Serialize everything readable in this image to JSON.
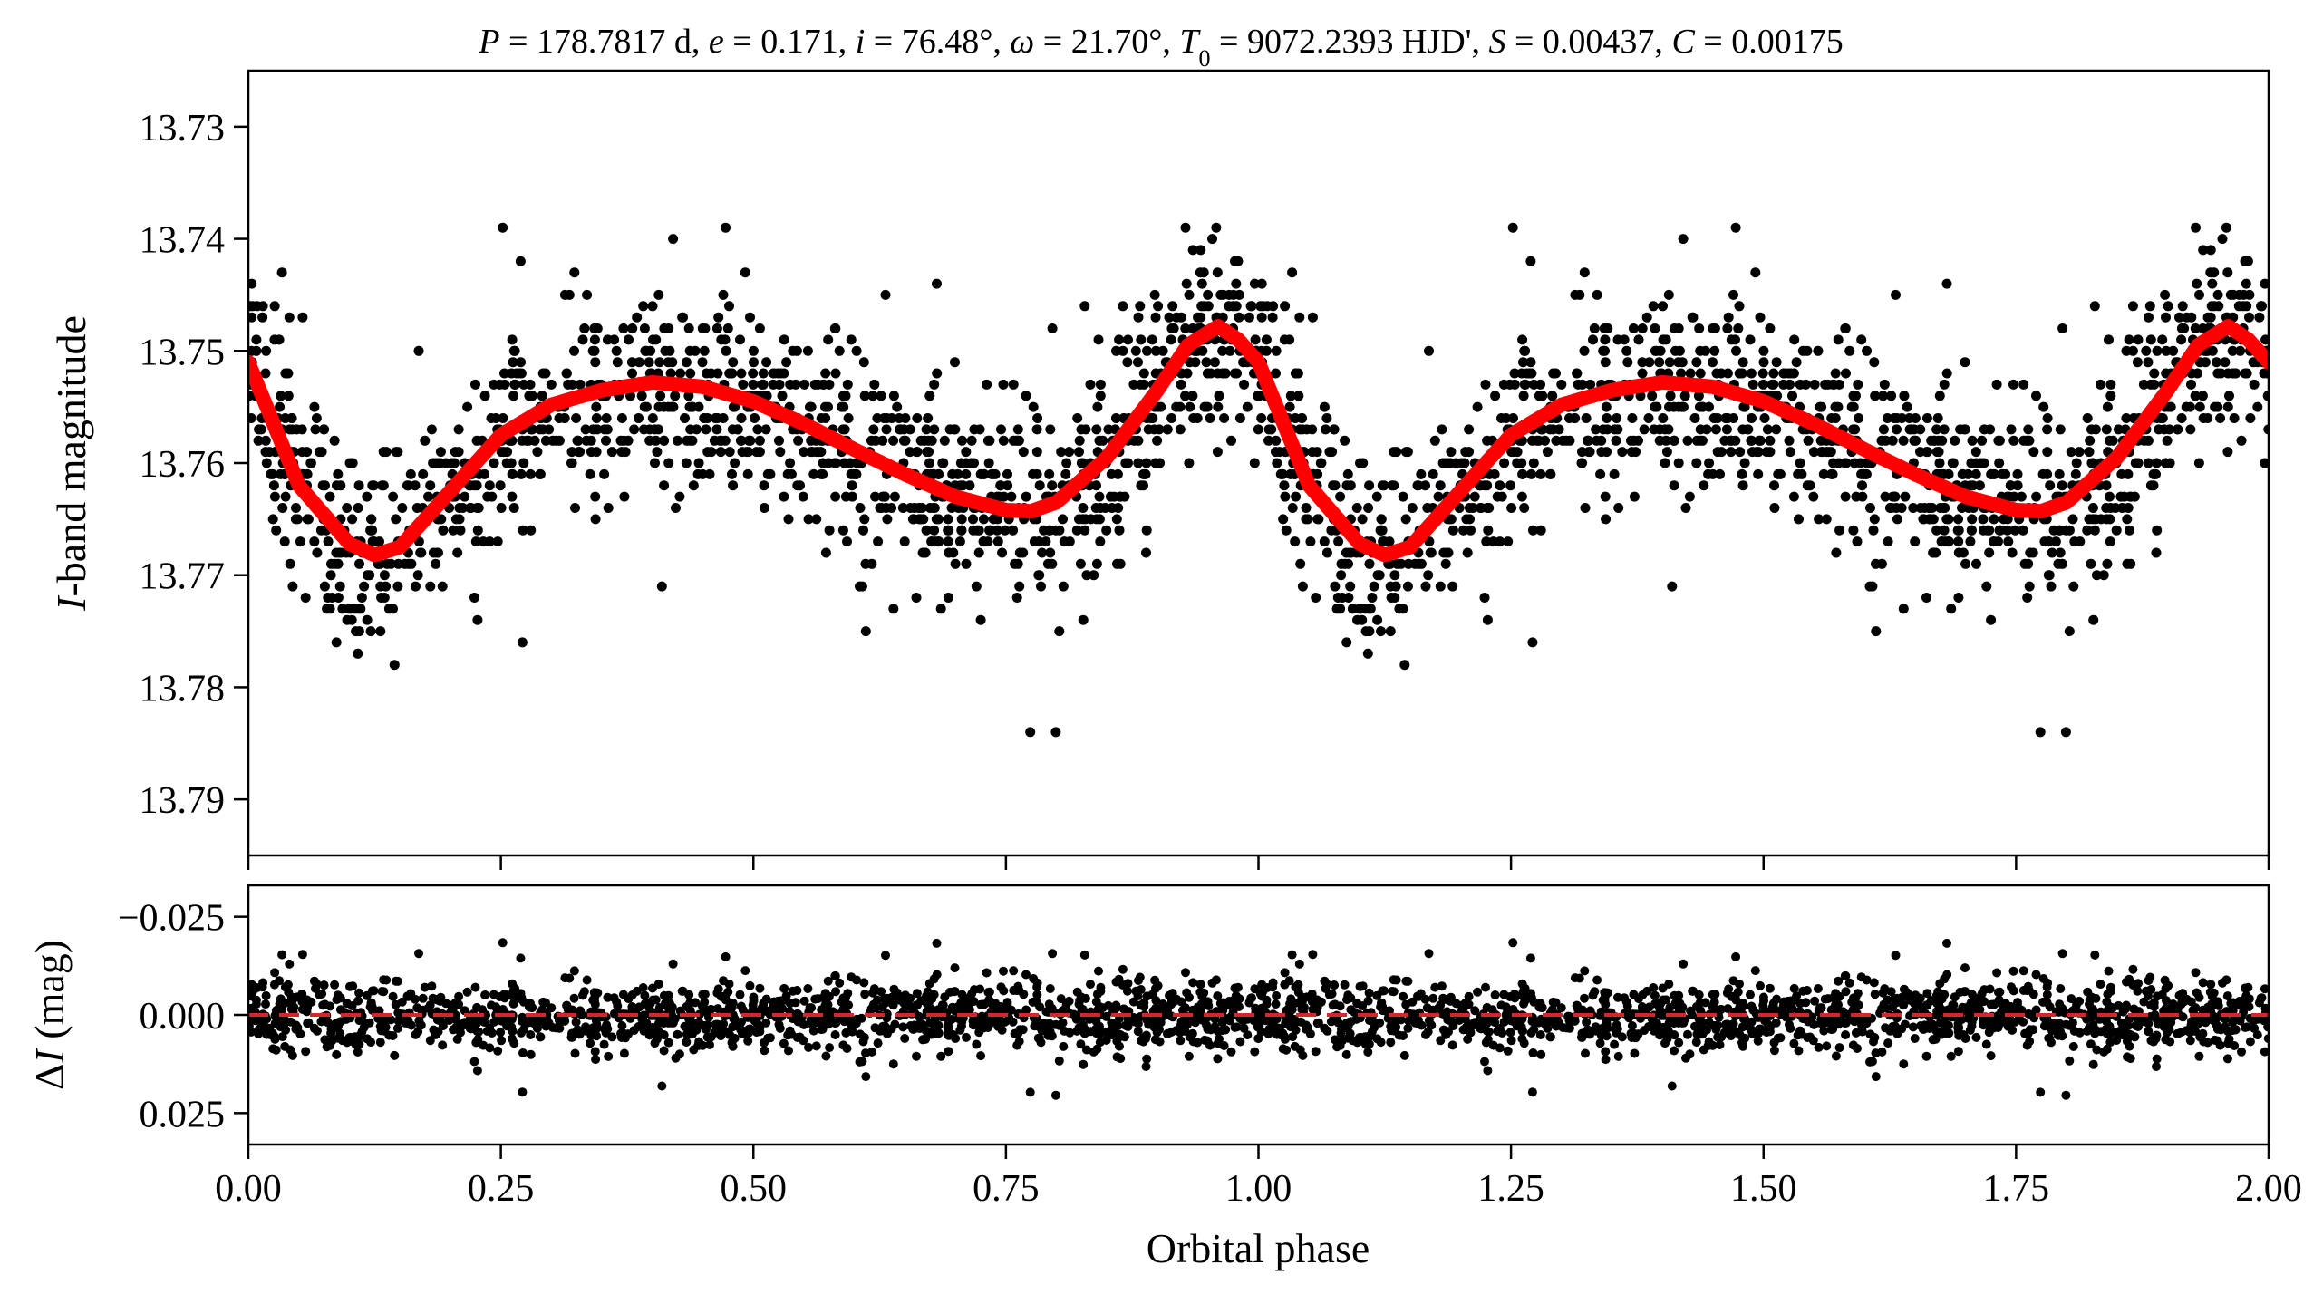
{
  "chart_data": [
    {
      "type": "scatter",
      "panel": "main",
      "title": "P = 178.7817 d, e = 0.171, i = 76.48°, ω = 21.70°, T0 = 9072.2393 HJD', S = 0.00437, C = 0.00175",
      "title_parts": {
        "p_sym": "P",
        "p_val": " = 178.7817 d, ",
        "e_sym": "e",
        "e_val": " = 0.171, ",
        "i_sym": "i",
        "i_val": " = 76.48°, ",
        "w_sym": "ω",
        "w_val": " = 21.70°, ",
        "t_sym": "T",
        "t_sub": "0",
        "t_val": " = 9072.2393 HJD', ",
        "s_sym": "S",
        "s_val": " = 0.00437, ",
        "c_sym": "C",
        "c_val": " = 0.00175"
      },
      "ylabel_italic": "I",
      "ylabel_rest": "-band magnitude",
      "xlim": [
        0.0,
        2.0
      ],
      "ylim": [
        13.795,
        13.725
      ],
      "y_inverted": true,
      "yticks": [
        13.73,
        13.74,
        13.75,
        13.76,
        13.77,
        13.78,
        13.79
      ],
      "ytick_labels": [
        "13.73",
        "13.74",
        "13.75",
        "13.76",
        "13.77",
        "13.78",
        "13.79"
      ],
      "xticks": [
        0.0,
        0.25,
        0.5,
        0.75,
        1.0,
        1.25,
        1.5,
        1.75,
        2.0
      ],
      "series": [
        {
          "kind": "points",
          "color": "#000000",
          "phase_span": [
            0.0,
            1.0
          ],
          "repeated_at_phase_plus": 1.0,
          "approx_count": 1300
        },
        {
          "kind": "model-curve",
          "color": "#ff0000",
          "x": [
            0.0,
            0.05,
            0.1,
            0.125,
            0.15,
            0.2,
            0.25,
            0.3,
            0.35,
            0.4,
            0.45,
            0.5,
            0.55,
            0.6,
            0.65,
            0.7,
            0.75,
            0.775,
            0.8,
            0.85,
            0.9,
            0.93,
            0.96,
            0.98,
            1.0
          ],
          "y": [
            13.751,
            13.762,
            13.7672,
            13.7682,
            13.7675,
            13.7625,
            13.7575,
            13.7548,
            13.7535,
            13.7528,
            13.7532,
            13.7545,
            13.7565,
            13.7588,
            13.761,
            13.763,
            13.7642,
            13.7643,
            13.7635,
            13.7595,
            13.7535,
            13.7495,
            13.7478,
            13.749,
            13.751
          ]
        }
      ]
    },
    {
      "type": "scatter",
      "panel": "residuals",
      "ylabel_italic": "I",
      "ylabel_prefix": "Δ",
      "ylabel_rest": " (mag)",
      "xlabel": "Orbital phase",
      "xlim": [
        0.0,
        2.0
      ],
      "ylim": [
        0.033,
        -0.033
      ],
      "y_inverted": true,
      "yticks": [
        -0.025,
        0.0,
        0.025
      ],
      "ytick_labels": [
        "−0.025",
        "0.000",
        "0.025"
      ],
      "xticks": [
        0.0,
        0.25,
        0.5,
        0.75,
        1.0,
        1.25,
        1.5,
        1.75,
        2.0
      ],
      "xtick_labels": [
        "0.00",
        "0.25",
        "0.50",
        "0.75",
        "1.00",
        "1.25",
        "1.50",
        "1.75",
        "2.00"
      ],
      "series": [
        {
          "kind": "points",
          "color": "#000000",
          "approx_sigma": 0.0045
        },
        {
          "kind": "zero-line",
          "color": "#d62728",
          "style": "dashed",
          "y": 0.0
        }
      ]
    }
  ]
}
